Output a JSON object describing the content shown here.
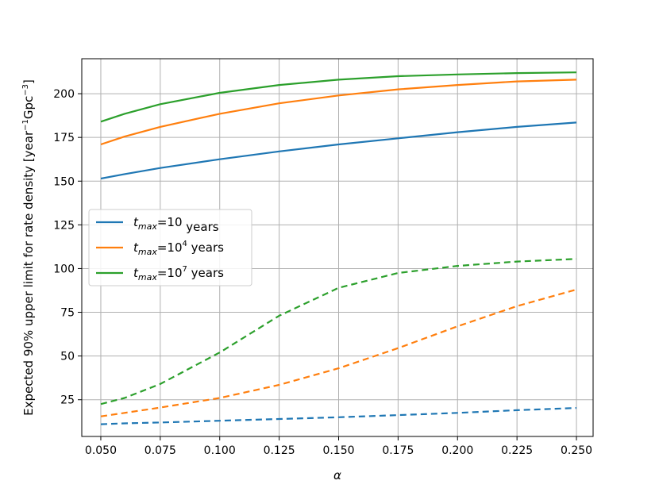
{
  "chart_data": {
    "type": "line",
    "xlabel": "α",
    "ylabel_main": "Expected 90% upper limit for rate density [year",
    "ylabel_unit_mid": "Gpc",
    "ylabel_end": "]",
    "ylabel_sup1": "−1",
    "ylabel_sup2": "−3",
    "xlim": [
      0.042,
      0.257
    ],
    "ylim": [
      4,
      220
    ],
    "grid": true,
    "legend_position": "center-left",
    "x_ticks": [
      0.05,
      0.075,
      0.1,
      0.125,
      0.15,
      0.175,
      0.2,
      0.225,
      0.25
    ],
    "x_tick_labels": [
      "0.050",
      "0.075",
      "0.100",
      "0.125",
      "0.150",
      "0.175",
      "0.200",
      "0.225",
      "0.250"
    ],
    "y_ticks": [
      25,
      50,
      75,
      100,
      125,
      150,
      175,
      200
    ],
    "y_tick_labels": [
      "25",
      "50",
      "75",
      "100",
      "125",
      "150",
      "175",
      "200"
    ],
    "x": [
      0.05,
      0.06,
      0.075,
      0.1,
      0.125,
      0.15,
      0.175,
      0.2,
      0.225,
      0.25
    ],
    "series": [
      {
        "legend_base": "t",
        "legend_sub": "max",
        "legend_mid": "=10",
        "legend_sup": "",
        "legend_end": " years",
        "color": "#1f77b4",
        "solid": [
          151.5,
          154,
          157.5,
          162.5,
          167,
          171,
          174.5,
          178,
          181,
          183.5
        ],
        "dashed": [
          11,
          11.5,
          12,
          13,
          14,
          15,
          16.2,
          17.5,
          19,
          20.3
        ]
      },
      {
        "legend_base": "t",
        "legend_sub": "max",
        "legend_mid": "=10",
        "legend_sup": "4",
        "legend_end": " years",
        "color": "#ff7f0e",
        "solid": [
          171,
          175.5,
          181,
          188.5,
          194.5,
          199,
          202.5,
          205,
          207,
          208
        ],
        "dashed": [
          15.5,
          17.5,
          20.5,
          26,
          33.5,
          43,
          54.5,
          67,
          78.5,
          88
        ]
      },
      {
        "legend_base": "t",
        "legend_sub": "max",
        "legend_mid": "=10",
        "legend_sup": "7",
        "legend_end": " years",
        "color": "#2ca02c",
        "solid": [
          184,
          188.5,
          194,
          200.5,
          205,
          208,
          210,
          211,
          211.8,
          212.2
        ],
        "dashed": [
          22.5,
          26,
          34,
          52,
          73,
          89,
          97.5,
          101.5,
          104,
          105.5
        ]
      }
    ]
  }
}
